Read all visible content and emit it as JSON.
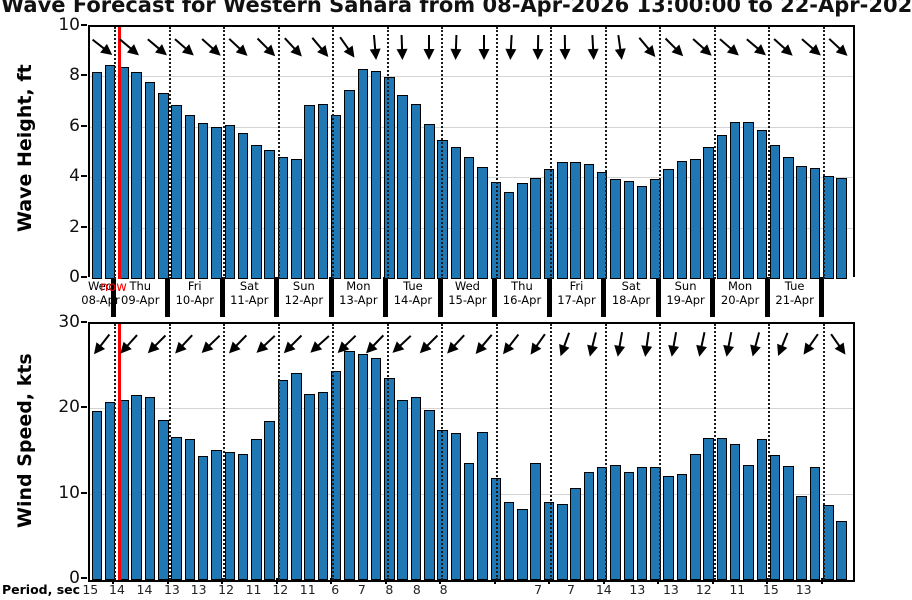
{
  "title": "Wave Forecast for Western Sahara from 08-Apr-2026 13:00:00 to 22-Apr-202",
  "now_label": "now",
  "colors": {
    "bar_fill": "#1f77b4",
    "bar_outline": "#000000",
    "now_line": "#ff0000",
    "gridline": "#d4d4d4",
    "dotted_dayline": "#1a1a1a"
  },
  "x_axis": {
    "days": [
      {
        "dow": "Wed",
        "date": "08-Apr"
      },
      {
        "dow": "Thu",
        "date": "09-Apr"
      },
      {
        "dow": "Fri",
        "date": "10-Apr"
      },
      {
        "dow": "Sat",
        "date": "11-Apr"
      },
      {
        "dow": "Sun",
        "date": "12-Apr"
      },
      {
        "dow": "Mon",
        "date": "13-Apr"
      },
      {
        "dow": "Tue",
        "date": "14-Apr"
      },
      {
        "dow": "Wed",
        "date": "15-Apr"
      },
      {
        "dow": "Thu",
        "date": "16-Apr"
      },
      {
        "dow": "Fri",
        "date": "17-Apr"
      },
      {
        "dow": "Sat",
        "date": "18-Apr"
      },
      {
        "dow": "Sun",
        "date": "19-Apr"
      },
      {
        "dow": "Mon",
        "date": "20-Apr"
      },
      {
        "dow": "Tue",
        "date": "21-Apr"
      }
    ]
  },
  "period_row": {
    "label": "Period, sec",
    "entries": [
      {
        "frac": 0.003,
        "value": "15"
      },
      {
        "frac": 0.038,
        "value": "14"
      },
      {
        "frac": 0.074,
        "value": "14"
      },
      {
        "frac": 0.11,
        "value": "13"
      },
      {
        "frac": 0.145,
        "value": "13"
      },
      {
        "frac": 0.181,
        "value": "12"
      },
      {
        "frac": 0.217,
        "value": "11"
      },
      {
        "frac": 0.252,
        "value": "12"
      },
      {
        "frac": 0.288,
        "value": "11"
      },
      {
        "frac": 0.324,
        "value": "6"
      },
      {
        "frac": 0.359,
        "value": "7"
      },
      {
        "frac": 0.395,
        "value": "8"
      },
      {
        "frac": 0.431,
        "value": "8"
      },
      {
        "frac": 0.466,
        "value": "8"
      },
      {
        "frac": 0.59,
        "value": "7"
      },
      {
        "frac": 0.633,
        "value": "7"
      },
      {
        "frac": 0.676,
        "value": "14"
      },
      {
        "frac": 0.72,
        "value": "13"
      },
      {
        "frac": 0.764,
        "value": "13"
      },
      {
        "frac": 0.807,
        "value": "12"
      },
      {
        "frac": 0.851,
        "value": "11"
      },
      {
        "frac": 0.895,
        "value": "15"
      },
      {
        "frac": 0.938,
        "value": "13"
      }
    ]
  },
  "chart_data": [
    {
      "type": "bar",
      "name": "wave-height",
      "ylabel": "Wave Height, ft",
      "ylim": [
        0,
        10
      ],
      "yticks": [
        10,
        8,
        6,
        4,
        2,
        0
      ],
      "gridlines": [
        8,
        6,
        4,
        2
      ],
      "x_start": "08-Apr 13:00",
      "x_step_hours": 6,
      "values": [
        8.2,
        8.5,
        8.4,
        8.2,
        7.8,
        7.4,
        6.9,
        6.5,
        6.2,
        6.05,
        6.1,
        5.8,
        5.3,
        5.1,
        4.85,
        4.75,
        6.9,
        6.95,
        6.5,
        7.5,
        8.35,
        8.25,
        8.0,
        7.3,
        6.95,
        6.15,
        5.5,
        5.25,
        4.85,
        4.45,
        3.85,
        3.45,
        3.8,
        4.0,
        4.35,
        4.65,
        4.65,
        4.55,
        4.25,
        3.95,
        3.9,
        3.7,
        3.95,
        4.35,
        4.7,
        4.75,
        5.25,
        5.7,
        6.25,
        6.25,
        5.9,
        5.3,
        4.85,
        4.5,
        4.4,
        4.1,
        4.0
      ],
      "arrow_angles_deg_cw_from_east": [
        38,
        40,
        40,
        41,
        42,
        43,
        45,
        47,
        50,
        55,
        85,
        88,
        90,
        92,
        90,
        93,
        91,
        89,
        87,
        82,
        50,
        45,
        42,
        41,
        40,
        42,
        41,
        43
      ]
    },
    {
      "type": "bar",
      "name": "wind-speed",
      "ylabel": "Wind Speed, kts",
      "ylim": [
        0,
        30
      ],
      "yticks": [
        30,
        20,
        10,
        0
      ],
      "gridlines": [
        20,
        10
      ],
      "x_start": "08-Apr 13:00",
      "x_step_hours": 6,
      "values": [
        19.8,
        20.9,
        21.1,
        21.7,
        21.4,
        18.7,
        16.8,
        16.5,
        14.5,
        15.2,
        15.0,
        14.8,
        16.5,
        18.6,
        23.4,
        24.3,
        21.8,
        22.0,
        24.5,
        26.8,
        26.5,
        26.0,
        23.7,
        21.1,
        21.5,
        19.9,
        17.6,
        17.2,
        13.7,
        17.3,
        11.9,
        9.2,
        8.3,
        13.7,
        9.1,
        8.9,
        10.8,
        12.7,
        13.3,
        13.5,
        12.7,
        13.3,
        13.3,
        12.2,
        12.4,
        14.8,
        16.7,
        16.6,
        15.9,
        13.5,
        16.5,
        14.7,
        13.4,
        9.9,
        13.3,
        8.8,
        6.9
      ],
      "arrow_angles_deg_cw_from_east": [
        128,
        132,
        135,
        133,
        136,
        134,
        137,
        135,
        138,
        136,
        134,
        137,
        135,
        133,
        130,
        128,
        125,
        110,
        104,
        100,
        98,
        100,
        102,
        101,
        105,
        112,
        125,
        55
      ]
    }
  ]
}
